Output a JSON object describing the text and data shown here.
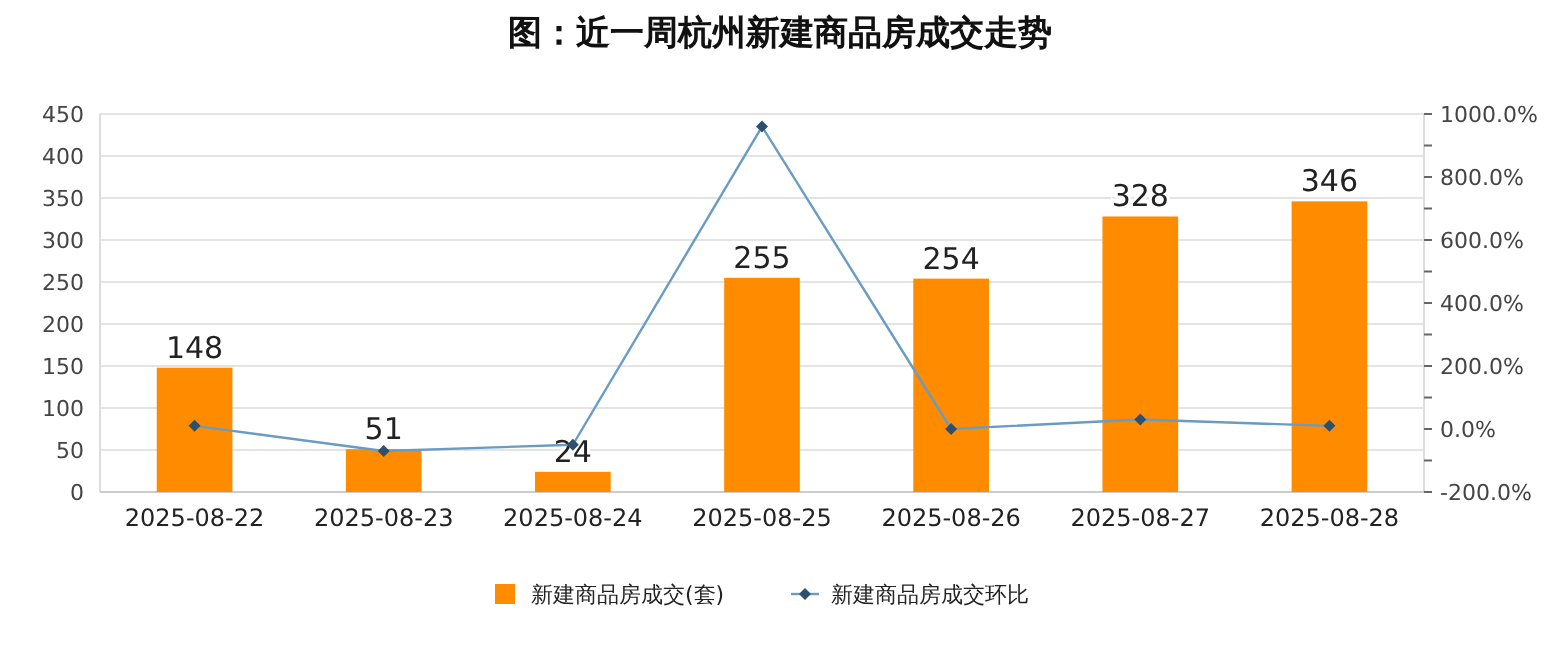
{
  "chart_data": {
    "type": "bar",
    "title": "图：近一周杭州新建商品房成交走势",
    "categories": [
      "2025-08-22",
      "2025-08-23",
      "2025-08-24",
      "2025-08-25",
      "2025-08-26",
      "2025-08-27",
      "2025-08-28"
    ],
    "series": [
      {
        "name": "新建商品房成交(套)",
        "color": "#ff8c00",
        "values": [
          148,
          51,
          24,
          255,
          254,
          328,
          346
        ],
        "value_labels": [
          "148",
          "51",
          "24",
          "255",
          "254",
          "328",
          "346"
        ]
      },
      {
        "name": "新建商品房成交环比",
        "type": "line",
        "axis": "y2",
        "color": "#6a9bc3",
        "marker": "diamond",
        "values": [
          10,
          -70,
          -50,
          960,
          0,
          30,
          10
        ]
      }
    ],
    "ylim": [
      0,
      450
    ],
    "yticks": [
      0,
      50,
      100,
      150,
      200,
      250,
      300,
      350,
      400,
      450
    ],
    "y2lim": [
      -200,
      1000
    ],
    "y2ticks": [
      {
        "value": -200,
        "label": "-200.0%"
      },
      {
        "value": -100,
        "label": null
      },
      {
        "value": 0,
        "label": "0.0%"
      },
      {
        "value": 100,
        "label": null
      },
      {
        "value": 200,
        "label": "200.0%"
      },
      {
        "value": 300,
        "label": null
      },
      {
        "value": 400,
        "label": "400.0%"
      },
      {
        "value": 500,
        "label": null
      },
      {
        "value": 600,
        "label": "600.0%"
      },
      {
        "value": 700,
        "label": null
      },
      {
        "value": 800,
        "label": "800.0%"
      },
      {
        "value": 900,
        "label": null
      },
      {
        "value": 1000,
        "label": "1000.0%"
      }
    ],
    "grid": "y",
    "legend": "bottom"
  }
}
